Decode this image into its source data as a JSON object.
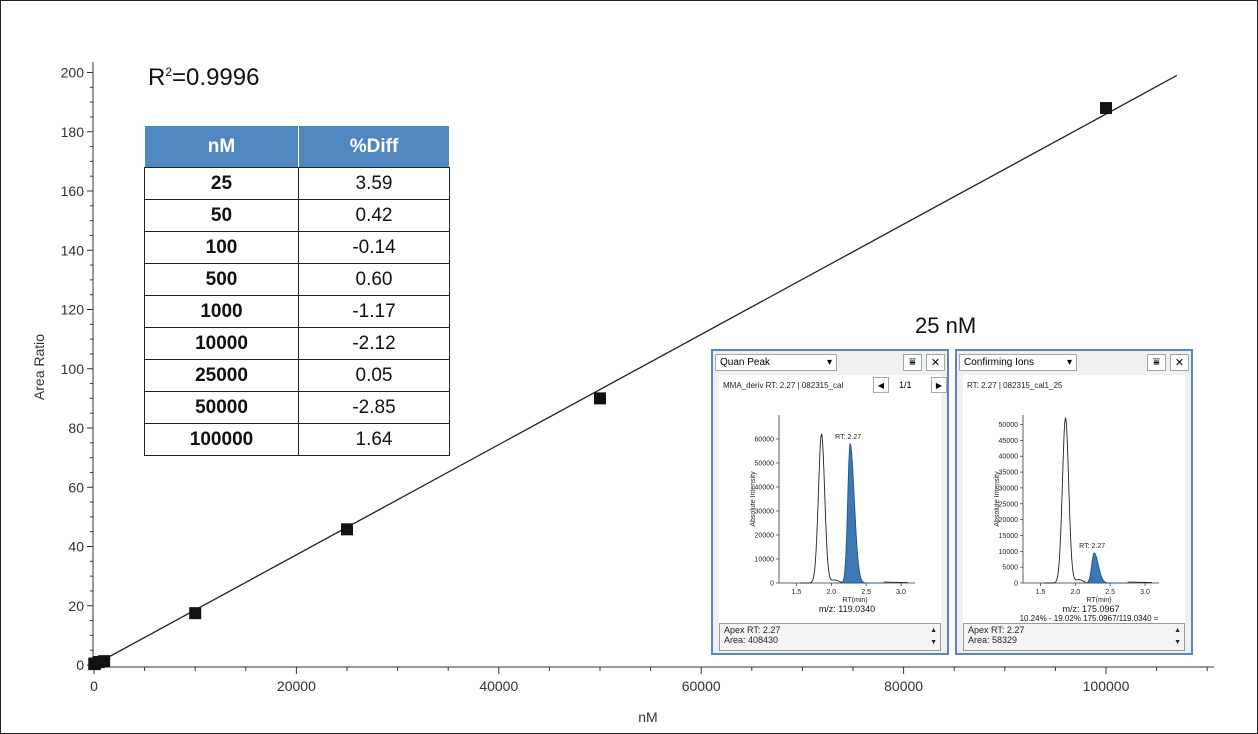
{
  "chart_data": {
    "type": "scatter",
    "xlabel": "nM",
    "ylabel": "Area Ratio",
    "xlim": [
      0,
      110000
    ],
    "ylim": [
      0,
      205
    ],
    "x_ticks": [
      0,
      20000,
      40000,
      60000,
      80000,
      100000
    ],
    "y_ticks": [
      0,
      20,
      40,
      60,
      80,
      100,
      120,
      140,
      160,
      180,
      200
    ],
    "points": [
      {
        "x": 25,
        "y": 0.3
      },
      {
        "x": 50,
        "y": 0.4
      },
      {
        "x": 100,
        "y": 0.5
      },
      {
        "x": 500,
        "y": 1.0
      },
      {
        "x": 1000,
        "y": 1.3
      },
      {
        "x": 10000,
        "y": 17.5
      },
      {
        "x": 25000,
        "y": 45.8
      },
      {
        "x": 50000,
        "y": 90
      },
      {
        "x": 100000,
        "y": 188
      }
    ],
    "fit_line": {
      "from": [
        0,
        0
      ],
      "to": [
        107000,
        199
      ]
    },
    "annotation": {
      "label": "R",
      "sup": "2",
      "rest": "=0.9996"
    }
  },
  "table": {
    "headers": [
      "nM",
      "%Diff"
    ],
    "rows": [
      [
        "25",
        "3.59"
      ],
      [
        "50",
        "0.42"
      ],
      [
        "100",
        "-0.14"
      ],
      [
        "500",
        "0.60"
      ],
      [
        "1000",
        "-1.17"
      ],
      [
        "10000",
        "-2.12"
      ],
      [
        "25000",
        "0.05"
      ],
      [
        "50000",
        "-2.85"
      ],
      [
        "100000",
        "1.64"
      ]
    ]
  },
  "inset": {
    "title": "25 nM",
    "quan": {
      "dropdown": "Quan Peak",
      "header": "MMA_deriv  RT: 2.27 | 082315_cal",
      "page": "1/1",
      "peak_label": "RT: 2.27",
      "y_ticks": [
        "60000",
        "50000",
        "40000",
        "30000",
        "20000",
        "10000",
        "0"
      ],
      "x_ticks": [
        "1.5",
        "2.0",
        "2.5",
        "3.0"
      ],
      "ylabel": "Absolute Intensity",
      "xlabel": "RT(min)",
      "mz": "m/z: 119.0340",
      "apex": "Apex RT: 2.27",
      "area": "Area: 408430"
    },
    "conf": {
      "dropdown": "Confirming Ions",
      "header": "RT: 2.27 | 082315_cal1_25",
      "peak_label": "RT: 2.27",
      "y_ticks": [
        "50000",
        "45000",
        "40000",
        "35000",
        "30000",
        "25000",
        "20000",
        "15000",
        "10000",
        "5000",
        "0"
      ],
      "x_ticks": [
        "1.5",
        "2.0",
        "2.5",
        "3.0"
      ],
      "ylabel": "Absolute Intensity",
      "xlabel": "RT(min)",
      "mz": "m/z: 175.0967",
      "ratio": "10.24% - 19.02% 175.0967/119.0340 =",
      "apex": "Apex RT: 2.27",
      "area": "Area: 58329"
    }
  },
  "colors": {
    "header_fill": "#4f88c0",
    "peak_fill": "#3b78b5",
    "frame": "#5a86c0"
  }
}
